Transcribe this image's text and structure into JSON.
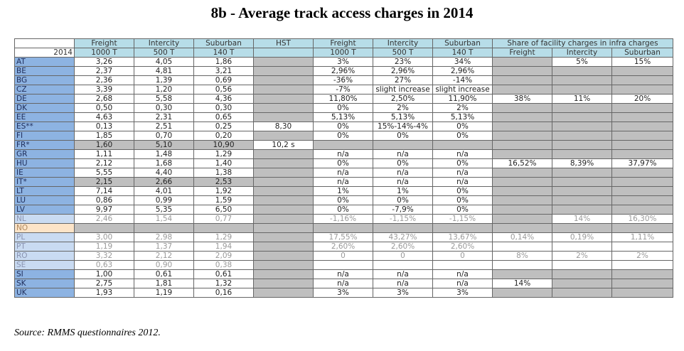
{
  "title": "8b - Average track access charges in 2014",
  "source": "Source: RMMS questionnaires 2012.",
  "header": {
    "year": "2014",
    "columns": [
      {
        "top": "Freight",
        "sub": "1000 T"
      },
      {
        "top": "Intercity",
        "sub": "500 T"
      },
      {
        "top": "Suburban",
        "sub": "140 T"
      },
      {
        "top": "HST",
        "sub": ""
      },
      {
        "top": "Freight",
        "sub": "1000 T"
      },
      {
        "top": "Intercity",
        "sub": "500 T"
      },
      {
        "top": "Suburban",
        "sub": "140 T"
      }
    ],
    "share_title": "Share of facility charges in infra charges",
    "share_cols": [
      "Freight",
      "Intercity",
      "Suburban"
    ]
  },
  "rows": [
    {
      "c": "AT",
      "v": [
        "3,26",
        "4,05",
        "1,86",
        "",
        "3%",
        "23%",
        "34%",
        "",
        "5%",
        "15%"
      ]
    },
    {
      "c": "BE",
      "v": [
        "2,37",
        "4,81",
        "3,21",
        "",
        "2,96%",
        "2,96%",
        "2,96%",
        "",
        "",
        ""
      ]
    },
    {
      "c": "BG",
      "v": [
        "2,36",
        "1,39",
        "0,69",
        "",
        "-36%",
        "27%",
        "-14%",
        "",
        "",
        ""
      ]
    },
    {
      "c": "CZ",
      "v": [
        "3,39",
        "1,20",
        "0,56",
        "",
        "-7%",
        "slight increase",
        "slight increase",
        "",
        "",
        ""
      ]
    },
    {
      "c": "DE",
      "v": [
        "2,68",
        "5,58",
        "4,36",
        "",
        "11,80%",
        "2,50%",
        "11,90%",
        "38%",
        "11%",
        "20%"
      ]
    },
    {
      "c": "DK",
      "v": [
        "0,50",
        "0,30",
        "0,30",
        "",
        "0%",
        "2%",
        "2%",
        "",
        "",
        ""
      ]
    },
    {
      "c": "EE",
      "v": [
        "4,63",
        "2,31",
        "0,65",
        "",
        "5,13%",
        "5,13%",
        "5,13%",
        "",
        "",
        ""
      ]
    },
    {
      "c": "ES**",
      "v": [
        "0,13",
        "2,51",
        "0,25",
        "8,30",
        "0%",
        "15%-14%-4%",
        "0%",
        "",
        "",
        ""
      ]
    },
    {
      "c": "FI",
      "v": [
        "1,85",
        "0,70",
        "0,20",
        "",
        "0%",
        "0%",
        "0%",
        "",
        "",
        ""
      ]
    },
    {
      "c": "FR*",
      "v": [
        "1,60",
        "5,10",
        "10,90",
        "10,2 s",
        "",
        "",
        "",
        "",
        "",
        ""
      ]
    },
    {
      "c": "GR",
      "v": [
        "1,11",
        "1,48",
        "1,29",
        "",
        "n/a",
        "n/a",
        "n/a",
        "",
        "",
        ""
      ]
    },
    {
      "c": "HU",
      "v": [
        "2,12",
        "1,68",
        "1,40",
        "",
        "0%",
        "0%",
        "0%",
        "16,52%",
        "8,39%",
        "37,97%"
      ]
    },
    {
      "c": "IE",
      "v": [
        "5,55",
        "4,40",
        "1,38",
        "",
        "n/a",
        "n/a",
        "n/a",
        "",
        "",
        ""
      ]
    },
    {
      "c": "IT*",
      "v": [
        "2,15",
        "2,66",
        "2,53",
        "",
        "n/a",
        "n/a",
        "n/a",
        "",
        "",
        ""
      ]
    },
    {
      "c": "LT",
      "v": [
        "7,14",
        "4,01",
        "1,92",
        "",
        "1%",
        "1%",
        "0%",
        "",
        "",
        ""
      ]
    },
    {
      "c": "LU",
      "v": [
        "0,86",
        "0,99",
        "1,59",
        "",
        "0%",
        "0%",
        "0%",
        "",
        "",
        ""
      ]
    },
    {
      "c": "LV",
      "v": [
        "9,97",
        "5,35",
        "6,50",
        "",
        "0%",
        "-7,9%",
        "0%",
        "",
        "",
        ""
      ]
    },
    {
      "c": "NL",
      "v": [
        "2,46",
        "1,54",
        "0,77",
        "",
        "-1,16%",
        "-1,15%",
        "-1,15%",
        "",
        "14%",
        "16,30%"
      ]
    },
    {
      "c": "NO",
      "v": [
        "",
        "",
        "",
        "",
        "",
        "",
        "",
        "",
        "",
        ""
      ]
    },
    {
      "c": "PL",
      "v": [
        "3,00",
        "2,98",
        "1,29",
        "",
        "17,55%",
        "43,27%",
        "13,67%",
        "0,14%",
        "0,19%",
        "1,11%"
      ]
    },
    {
      "c": "PT",
      "v": [
        "1,19",
        "1,37",
        "1,94",
        "",
        "2,60%",
        "2,60%",
        "2,60%",
        "",
        "",
        ""
      ]
    },
    {
      "c": "RO",
      "v": [
        "3,32",
        "2,12",
        "2,09",
        "",
        "0",
        "0",
        "0",
        "8%",
        "2%",
        "2%"
      ]
    },
    {
      "c": "SE",
      "v": [
        "0,63",
        "0,90",
        "0,38",
        "",
        "",
        "",
        "",
        "",
        "",
        ""
      ]
    },
    {
      "c": "SI",
      "v": [
        "1,00",
        "0,61",
        "0,61",
        "",
        "n/a",
        "n/a",
        "n/a",
        "",
        "",
        ""
      ]
    },
    {
      "c": "SK",
      "v": [
        "2,75",
        "1,81",
        "1,32",
        "",
        "n/a",
        "n/a",
        "n/a",
        "14%",
        "",
        ""
      ]
    },
    {
      "c": "UK",
      "v": [
        "1,93",
        "1,19",
        "0,16",
        "",
        "3%",
        "3%",
        "3%",
        "",
        "",
        ""
      ]
    }
  ]
}
